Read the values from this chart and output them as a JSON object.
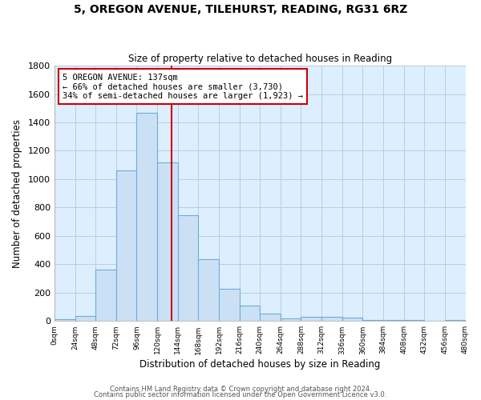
{
  "title": "5, OREGON AVENUE, TILEHURST, READING, RG31 6RZ",
  "subtitle": "Size of property relative to detached houses in Reading",
  "xlabel": "Distribution of detached houses by size in Reading",
  "ylabel": "Number of detached properties",
  "bar_color": "#cce0f5",
  "bar_edge_color": "#6aaed6",
  "background_color": "#ddeeff",
  "fig_color": "#ffffff",
  "gridcolor": "#c8d8e8",
  "bin_edges": [
    0,
    24,
    48,
    72,
    96,
    120,
    144,
    168,
    192,
    216,
    240,
    264,
    288,
    312,
    336,
    360,
    384,
    408,
    432,
    456,
    480
  ],
  "bar_heights": [
    15,
    35,
    360,
    1060,
    1470,
    1120,
    745,
    435,
    230,
    110,
    55,
    20,
    30,
    30,
    25,
    10,
    5,
    10,
    0,
    5
  ],
  "vline_x": 137,
  "vline_color": "#cc0000",
  "annotation_title": "5 OREGON AVENUE: 137sqm",
  "annotation_line1": "← 66% of detached houses are smaller (3,730)",
  "annotation_line2": "34% of semi-detached houses are larger (1,923) →",
  "annotation_box_color": "#ffffff",
  "annotation_border_color": "#cc0000",
  "ylim": [
    0,
    1800
  ],
  "yticks": [
    0,
    200,
    400,
    600,
    800,
    1000,
    1200,
    1400,
    1600,
    1800
  ],
  "xtick_labels": [
    "0sqm",
    "24sqm",
    "48sqm",
    "72sqm",
    "96sqm",
    "120sqm",
    "144sqm",
    "168sqm",
    "192sqm",
    "216sqm",
    "240sqm",
    "264sqm",
    "288sqm",
    "312sqm",
    "336sqm",
    "360sqm",
    "384sqm",
    "408sqm",
    "432sqm",
    "456sqm",
    "480sqm"
  ],
  "footnote1": "Contains HM Land Registry data © Crown copyright and database right 2024.",
  "footnote2": "Contains public sector information licensed under the Open Government Licence v3.0."
}
